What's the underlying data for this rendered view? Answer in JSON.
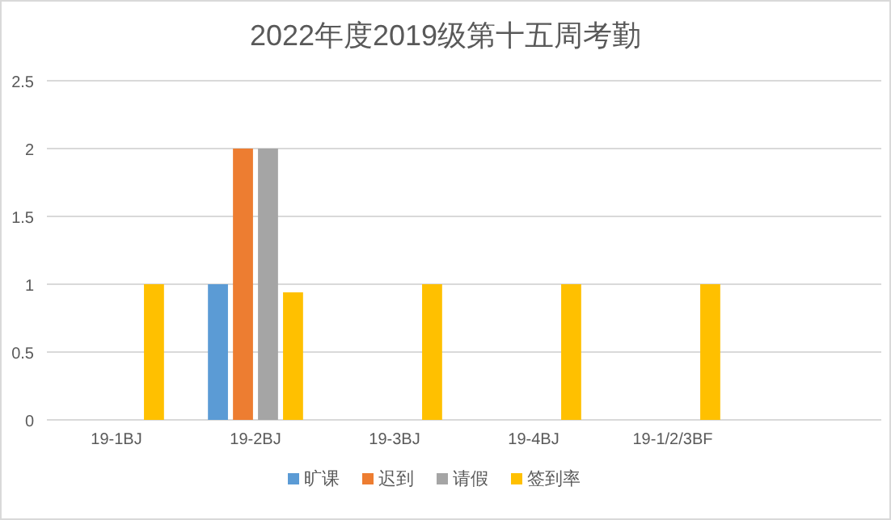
{
  "chart_data": {
    "type": "bar",
    "title": "2022年度2019级第十五周考勤",
    "categories": [
      "19-1BJ",
      "19-2BJ",
      "19-3BJ",
      "19-4BJ",
      "19-1/2/3BF",
      null
    ],
    "series": [
      {
        "name": "旷课",
        "color": "#5b9bd5",
        "values": [
          null,
          1,
          null,
          null,
          null,
          null
        ]
      },
      {
        "name": "迟到",
        "color": "#ed7d31",
        "values": [
          null,
          2,
          null,
          null,
          null,
          null
        ]
      },
      {
        "name": "请假",
        "color": "#a5a5a5",
        "values": [
          null,
          2,
          null,
          null,
          null,
          null
        ]
      },
      {
        "name": "签到率",
        "color": "#ffc000",
        "values": [
          1,
          0.94,
          1,
          1,
          1,
          null
        ]
      }
    ],
    "ylim": [
      0,
      2.5
    ],
    "yticks": [
      0,
      0.5,
      1,
      1.5,
      2,
      2.5
    ],
    "grid": "y",
    "legend": "bottom"
  }
}
